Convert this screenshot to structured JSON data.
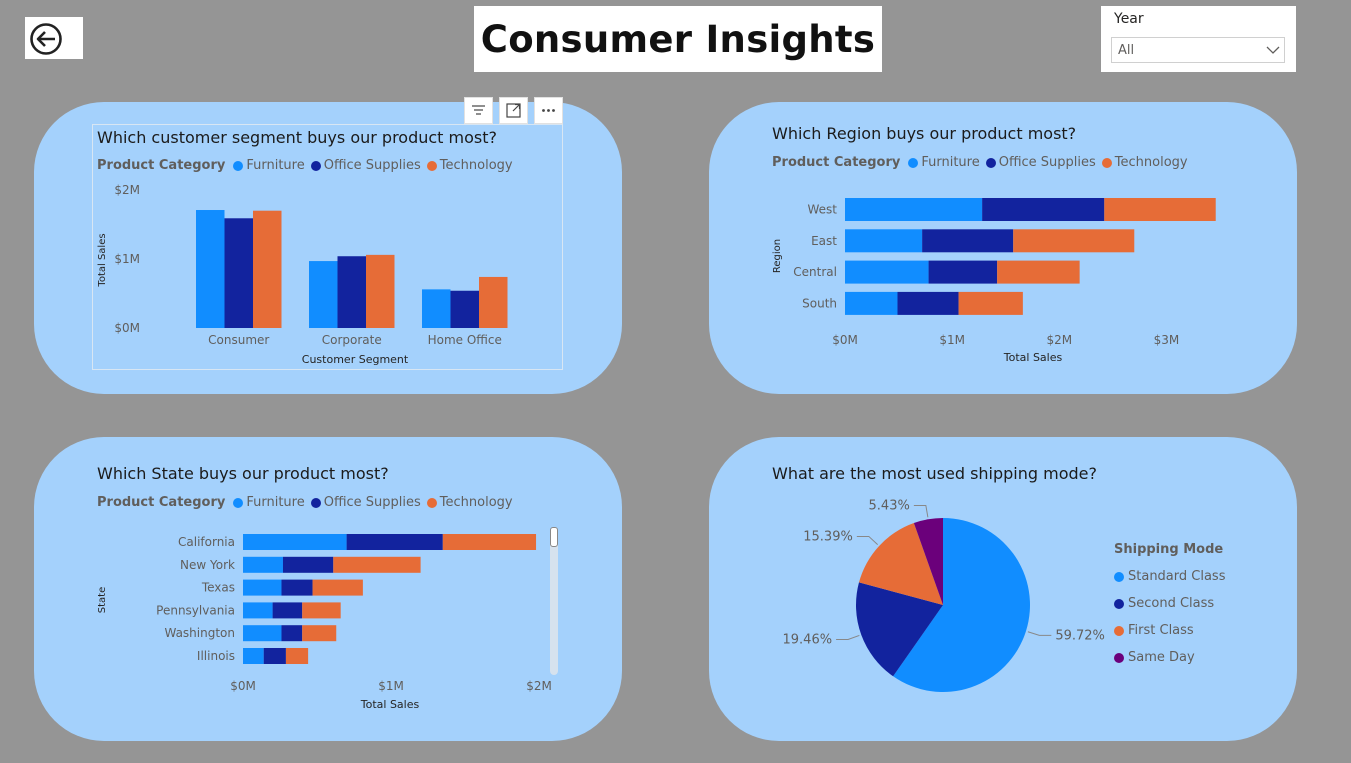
{
  "page": {
    "title": "Consumer Insights",
    "back_icon": "arrow-left-circle-icon"
  },
  "slicer": {
    "label": "Year",
    "value": "All",
    "icon": "chevron-down-icon"
  },
  "colors": {
    "furniture": "#118dff",
    "office_supplies": "#12239e",
    "technology": "#e66c37",
    "same_day": "#6b007b",
    "panel": "#a4d1fc",
    "background": "#959595"
  },
  "visual_header": {
    "icons": [
      "filter-icon",
      "focus-mode-icon",
      "more-options-icon"
    ]
  },
  "charts": {
    "segment": {
      "title": "Which customer segment buys our product most?",
      "legend_title": "Product Category",
      "legend": [
        "Furniture",
        "Office Supplies",
        "Technology"
      ]
    },
    "region": {
      "title": "Which Region buys our product most?",
      "legend_title": "Product Category",
      "legend": [
        "Furniture",
        "Office Supplies",
        "Technology"
      ]
    },
    "state": {
      "title": "Which State buys our product most?",
      "legend_title": "Product Category",
      "legend": [
        "Furniture",
        "Office Supplies",
        "Technology"
      ]
    },
    "shipping": {
      "title": "What are the most used shipping mode?",
      "legend_title": "Shipping Mode",
      "legend": [
        "Standard Class",
        "Second Class",
        "First Class",
        "Same Day"
      ]
    }
  },
  "chart_data": [
    {
      "type": "bar",
      "orientation": "vertical",
      "title": "Which customer segment buys our product most?",
      "xlabel": "Customer Segment",
      "ylabel": "Total Sales",
      "categories": [
        "Consumer",
        "Corporate",
        "Home Office"
      ],
      "series": [
        {
          "name": "Furniture",
          "values": [
            1.71,
            0.97,
            0.56
          ]
        },
        {
          "name": "Office Supplies",
          "values": [
            1.59,
            1.04,
            0.54
          ]
        },
        {
          "name": "Technology",
          "values": [
            1.7,
            1.06,
            0.74
          ]
        }
      ],
      "ylim": [
        0,
        2
      ],
      "yticks": [
        "$0M",
        "$1M",
        "$2M"
      ],
      "grid": false,
      "legend_position": "top-left"
    },
    {
      "type": "bar",
      "orientation": "horizontal-stacked",
      "title": "Which Region buys our product most?",
      "xlabel": "Total Sales",
      "ylabel": "Region",
      "categories": [
        "West",
        "East",
        "Central",
        "South"
      ],
      "series": [
        {
          "name": "Furniture",
          "values": [
            1.28,
            0.72,
            0.78,
            0.49
          ]
        },
        {
          "name": "Office Supplies",
          "values": [
            1.14,
            0.85,
            0.64,
            0.57
          ]
        },
        {
          "name": "Technology",
          "values": [
            1.04,
            1.13,
            0.77,
            0.6
          ]
        }
      ],
      "xlim": [
        0,
        3.5
      ],
      "xticks": [
        "$0M",
        "$1M",
        "$2M",
        "$3M"
      ],
      "grid": false,
      "legend_position": "top-left"
    },
    {
      "type": "bar",
      "orientation": "horizontal-stacked",
      "title": "Which State buys our product most?",
      "xlabel": "Total Sales",
      "ylabel": "State",
      "categories": [
        "California",
        "New York",
        "Texas",
        "Pennsylvania",
        "Washington",
        "Illinois"
      ],
      "series": [
        {
          "name": "Furniture",
          "values": [
            0.7,
            0.27,
            0.26,
            0.2,
            0.26,
            0.14
          ]
        },
        {
          "name": "Office Supplies",
          "values": [
            0.65,
            0.34,
            0.21,
            0.2,
            0.14,
            0.15
          ]
        },
        {
          "name": "Technology",
          "values": [
            0.63,
            0.59,
            0.34,
            0.26,
            0.23,
            0.15
          ]
        }
      ],
      "xlim": [
        0,
        2
      ],
      "xticks": [
        "$0M",
        "$1M",
        "$2M"
      ],
      "grid": false,
      "legend_position": "top-left"
    },
    {
      "type": "pie",
      "title": "What are the most used shipping mode?",
      "labels": [
        "Standard Class",
        "Second Class",
        "First Class",
        "Same Day"
      ],
      "values": [
        59.72,
        19.46,
        15.39,
        5.43
      ],
      "value_labels": [
        "59.72%",
        "19.46%",
        "15.39%",
        "5.43%"
      ],
      "legend_title": "Shipping Mode",
      "legend_position": "right"
    }
  ]
}
